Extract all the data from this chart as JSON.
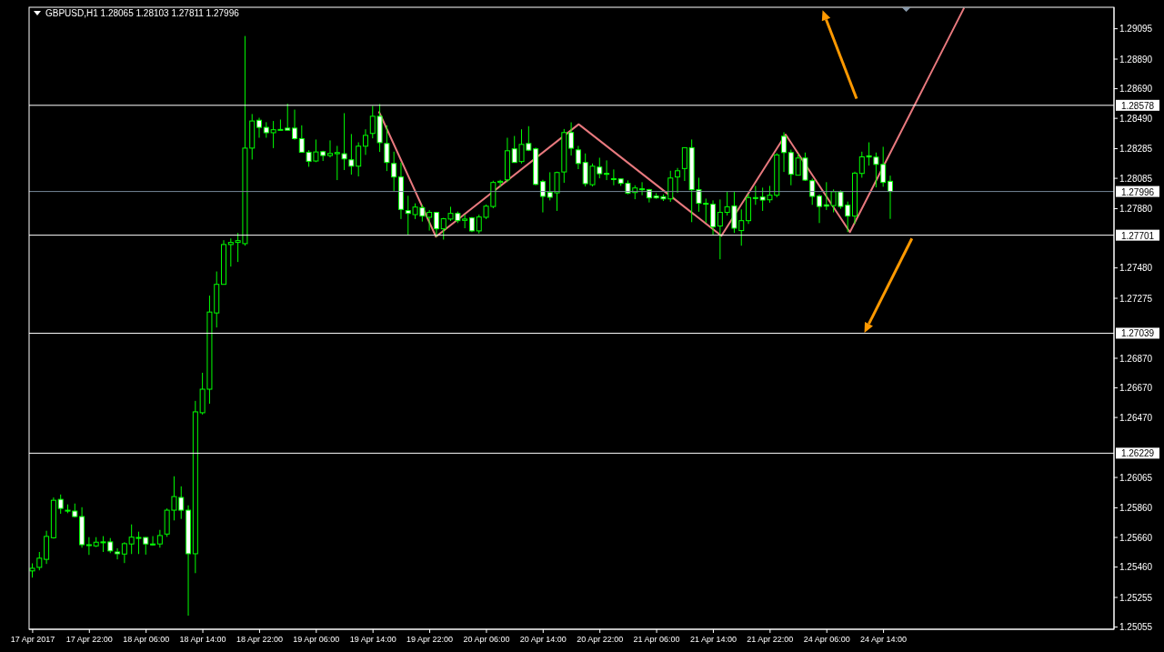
{
  "chart_data": {
    "type": "candlestick",
    "title": "GBPUSD,H1  1.28065 1.28103 1.27811 1.27996",
    "color": "#00ff00",
    "categories": [
      "17 Apr 2017",
      null,
      null,
      null,
      null,
      null,
      null,
      null,
      "17 Apr 22:00",
      null,
      null,
      null,
      null,
      null,
      null,
      null,
      "18 Apr 06:00",
      null,
      null,
      null,
      null,
      null,
      null,
      null,
      "18 Apr 14:00",
      null,
      null,
      null,
      null,
      null,
      null,
      null,
      "18 Apr 22:00",
      null,
      null,
      null,
      null,
      null,
      null,
      null,
      "19 Apr 06:00",
      null,
      null,
      null,
      null,
      null,
      null,
      null,
      "19 Apr 14:00",
      null,
      null,
      null,
      null,
      null,
      null,
      null,
      "19 Apr 22:00",
      null,
      null,
      null,
      null,
      null,
      null,
      null,
      "20 Apr 06:00",
      null,
      null,
      null,
      null,
      null,
      null,
      null,
      "20 Apr 14:00",
      null,
      null,
      null,
      null,
      null,
      null,
      null,
      "20 Apr 22:00",
      null,
      null,
      null,
      null,
      null,
      null,
      null,
      "21 Apr 06:00",
      null,
      null,
      null,
      null,
      null,
      null,
      null,
      "21 Apr 14:00",
      null,
      null,
      null,
      null,
      null,
      null,
      null,
      "21 Apr 22:00",
      null,
      null,
      null,
      null,
      null,
      null,
      null,
      "24 Apr 06:00",
      null,
      null,
      null,
      null,
      null,
      null,
      null,
      "24 Apr 14:00",
      null,
      null,
      null,
      null,
      null,
      null,
      null,
      null,
      null,
      null,
      null,
      null,
      null,
      null,
      null,
      null,
      null,
      null,
      null,
      null,
      null,
      null,
      null,
      null,
      null,
      null,
      null,
      null,
      null,
      null,
      null,
      null
    ],
    "ohlc": [
      [
        1.25434,
        1.25485,
        1.25389,
        1.25452
      ],
      [
        1.25458,
        1.25562,
        1.25438,
        1.2552
      ],
      [
        1.25512,
        1.25705,
        1.25481,
        1.25667
      ],
      [
        1.25658,
        1.2593,
        1.25652,
        1.25911
      ],
      [
        1.25917,
        1.2595,
        1.2582,
        1.25856
      ],
      [
        1.25844,
        1.25883,
        1.25824,
        1.25842
      ],
      [
        1.25838,
        1.25889,
        1.25795,
        1.25801
      ],
      [
        1.25801,
        1.25864,
        1.25591,
        1.25611
      ],
      [
        1.25611,
        1.25662,
        1.25542,
        1.25605
      ],
      [
        1.25603,
        1.25662,
        1.25595,
        1.25628
      ],
      [
        1.2563,
        1.25669,
        1.25562,
        1.25628
      ],
      [
        1.2563,
        1.25656,
        1.25554,
        1.25569
      ],
      [
        1.25562,
        1.25587,
        1.25512,
        1.2555
      ],
      [
        1.25548,
        1.25628,
        1.25487,
        1.25618
      ],
      [
        1.25616,
        1.25748,
        1.25548,
        1.25662
      ],
      [
        1.2566,
        1.25699,
        1.25548,
        1.25654
      ],
      [
        1.2566,
        1.25662,
        1.25544,
        1.25616
      ],
      [
        1.25616,
        1.25669,
        1.25607,
        1.25614
      ],
      [
        1.25616,
        1.25711,
        1.25591,
        1.25673
      ],
      [
        1.25683,
        1.25856,
        1.25664,
        1.25844
      ],
      [
        1.25844,
        1.26073,
        1.25775,
        1.25936
      ],
      [
        1.2593,
        1.26005,
        1.25785,
        1.25844
      ],
      [
        1.25844,
        1.25877,
        1.25132,
        1.2555
      ],
      [
        1.2555,
        1.26582,
        1.25419,
        1.26508
      ],
      [
        1.26502,
        1.26772,
        1.2649,
        1.26661
      ],
      [
        1.26661,
        1.27293,
        1.26563,
        1.27182
      ],
      [
        1.27176,
        1.27456,
        1.27078,
        1.27369
      ],
      [
        1.27369,
        1.27667,
        1.27369,
        1.27638
      ],
      [
        1.27638,
        1.27679,
        1.27489,
        1.27652
      ],
      [
        1.27652,
        1.27716,
        1.2752,
        1.27664
      ],
      [
        1.27644,
        1.29046,
        1.2763,
        1.28289
      ],
      [
        1.28289,
        1.28519,
        1.28212,
        1.28472
      ],
      [
        1.28477,
        1.28494,
        1.28359,
        1.28429
      ],
      [
        1.28429,
        1.28464,
        1.28359,
        1.28393
      ],
      [
        1.28393,
        1.28472,
        1.28289,
        1.28413
      ],
      [
        1.28413,
        1.28482,
        1.2841,
        1.28415
      ],
      [
        1.28424,
        1.28589,
        1.2841,
        1.2841
      ],
      [
        1.28424,
        1.28549,
        1.28345,
        1.28353
      ],
      [
        1.28353,
        1.28443,
        1.28261,
        1.28261
      ],
      [
        1.28261,
        1.28275,
        1.28163,
        1.282
      ],
      [
        1.28202,
        1.28347,
        1.28194,
        1.28263
      ],
      [
        1.28265,
        1.28271,
        1.28202,
        1.28239
      ],
      [
        1.28239,
        1.28341,
        1.28226,
        1.28253
      ],
      [
        1.28251,
        1.28304,
        1.28073,
        1.28259
      ],
      [
        1.28251,
        1.28525,
        1.28141,
        1.28216
      ],
      [
        1.2821,
        1.28384,
        1.2811,
        1.28167
      ],
      [
        1.28167,
        1.28328,
        1.28098,
        1.28302
      ],
      [
        1.28302,
        1.28416,
        1.28243,
        1.28375
      ],
      [
        1.28388,
        1.28574,
        1.28355,
        1.28504
      ],
      [
        1.28504,
        1.28586,
        1.28263,
        1.28326
      ],
      [
        1.2832,
        1.28443,
        1.28134,
        1.28192
      ],
      [
        1.28185,
        1.28265,
        1.27998,
        1.28094
      ],
      [
        1.28094,
        1.28192,
        1.2781,
        1.27875
      ],
      [
        1.27867,
        1.27967,
        1.27705,
        1.27848
      ],
      [
        1.2784,
        1.27916,
        1.2781,
        1.27891
      ],
      [
        1.27887,
        1.27906,
        1.27793,
        1.2783
      ],
      [
        1.27822,
        1.27871,
        1.27732,
        1.27855
      ],
      [
        1.27855,
        1.27855,
        1.27691,
        1.27744
      ],
      [
        1.27744,
        1.27818,
        1.27671,
        1.27812
      ],
      [
        1.2781,
        1.27893,
        1.27797,
        1.27848
      ],
      [
        1.27848,
        1.27861,
        1.27783,
        1.27799
      ],
      [
        1.27801,
        1.2784,
        1.27748,
        1.2781
      ],
      [
        1.27818,
        1.27824,
        1.27722,
        1.2773
      ],
      [
        1.2773,
        1.2784,
        1.27712,
        1.27824
      ],
      [
        1.27822,
        1.27908,
        1.2781,
        1.27897
      ],
      [
        1.27895,
        1.28069,
        1.27883,
        1.28057
      ],
      [
        1.28057,
        1.28075,
        1.28028,
        1.28065
      ],
      [
        1.28075,
        1.28359,
        1.28059,
        1.28271
      ],
      [
        1.28284,
        1.28371,
        1.28192,
        1.28192
      ],
      [
        1.28198,
        1.28416,
        1.28185,
        1.28314
      ],
      [
        1.2832,
        1.28437,
        1.28269,
        1.28275
      ],
      [
        1.28284,
        1.28292,
        1.28038,
        1.28044
      ],
      [
        1.28063,
        1.28075,
        1.27855,
        1.27963
      ],
      [
        1.27991,
        1.28126,
        1.27936,
        1.27957
      ],
      [
        1.27987,
        1.2813,
        1.27865,
        1.28124
      ],
      [
        1.28128,
        1.28418,
        1.28055,
        1.28394
      ],
      [
        1.28394,
        1.28463,
        1.28239,
        1.28288
      ],
      [
        1.28277,
        1.28304,
        1.28147,
        1.28185
      ],
      [
        1.28192,
        1.28253,
        1.2803,
        1.28049
      ],
      [
        1.28042,
        1.28185,
        1.2803,
        1.28167
      ],
      [
        1.28161,
        1.28224,
        1.28085,
        1.28116
      ],
      [
        1.28118,
        1.28206,
        1.28073,
        1.28114
      ],
      [
        1.28083,
        1.28145,
        1.28038,
        1.28079
      ],
      [
        1.28081,
        1.28081,
        1.28034,
        1.28051
      ],
      [
        1.28051,
        1.28071,
        1.27977,
        1.27985
      ],
      [
        1.27989,
        1.28038,
        1.27944,
        1.2802
      ],
      [
        1.28014,
        1.28059,
        1.27971,
        1.28008
      ],
      [
        1.28008,
        1.28014,
        1.27922,
        1.27953
      ],
      [
        1.27965,
        1.27985,
        1.27946,
        1.27953
      ],
      [
        1.27961,
        1.27977,
        1.27932,
        1.27946
      ],
      [
        1.27946,
        1.28136,
        1.27926,
        1.28087
      ],
      [
        1.28094,
        1.28155,
        1.27987,
        1.28136
      ],
      [
        1.28151,
        1.28292,
        1.28067,
        1.28292
      ],
      [
        1.28292,
        1.28347,
        1.27789,
        1.28008
      ],
      [
        1.28008,
        1.28089,
        1.27859,
        1.27916
      ],
      [
        1.27916,
        1.27948,
        1.27785,
        1.2791
      ],
      [
        1.2791,
        1.27936,
        1.27703,
        1.27757
      ],
      [
        1.27763,
        1.27942,
        1.27538,
        1.27855
      ],
      [
        1.27855,
        1.27993,
        1.27834,
        1.27893
      ],
      [
        1.27899,
        1.27993,
        1.27716,
        1.27748
      ],
      [
        1.27732,
        1.27875,
        1.2763,
        1.27799
      ],
      [
        1.27799,
        1.27979,
        1.27777,
        1.27955
      ],
      [
        1.27955,
        1.28034,
        1.27906,
        1.27951
      ],
      [
        1.27959,
        1.28022,
        1.27865,
        1.27938
      ],
      [
        1.2794,
        1.28034,
        1.2792,
        1.27971
      ],
      [
        1.27971,
        1.28255,
        1.27957,
        1.28243
      ],
      [
        1.28369,
        1.28396,
        1.28128,
        1.28259
      ],
      [
        1.28259,
        1.28279,
        1.28038,
        1.28112
      ],
      [
        1.28106,
        1.28251,
        1.28106,
        1.28222
      ],
      [
        1.28222,
        1.28259,
        1.28067,
        1.28073
      ],
      [
        1.28069,
        1.28083,
        1.27906,
        1.27963
      ],
      [
        1.27965,
        1.27977,
        1.27783,
        1.27895
      ],
      [
        1.27906,
        1.28059,
        1.27871,
        1.27897
      ],
      [
        1.27901,
        1.2801,
        1.27855,
        1.27995
      ],
      [
        1.27993,
        1.28004,
        1.27879,
        1.27895
      ],
      [
        1.27904,
        1.27928,
        1.27722,
        1.2783
      ],
      [
        1.2783,
        1.2813,
        1.27777,
        1.2812
      ],
      [
        1.28118,
        1.28265,
        1.28089,
        1.2823
      ],
      [
        1.28237,
        1.28328,
        1.28171,
        1.28229
      ],
      [
        1.28228,
        1.28259,
        1.28024,
        1.28179
      ],
      [
        1.28179,
        1.28298,
        1.28028,
        1.28057
      ],
      [
        1.28065,
        1.28103,
        1.27811,
        1.27996
      ],
      null,
      null,
      null,
      null,
      null,
      null,
      null,
      null,
      null,
      null,
      null,
      null,
      null,
      null,
      null,
      null,
      null,
      null,
      null,
      null,
      null,
      null,
      null,
      null,
      null,
      null,
      null,
      null,
      null,
      null,
      null
    ],
    "series": [
      {
        "type": "line",
        "color": "#e8797e",
        "values": [
          null,
          null,
          null,
          null,
          null,
          null,
          null,
          null,
          null,
          null,
          null,
          null,
          null,
          null,
          null,
          null,
          null,
          null,
          null,
          null,
          null,
          null,
          null,
          null,
          null,
          null,
          null,
          null,
          null,
          null,
          null,
          null,
          null,
          null,
          null,
          null,
          null,
          null,
          null,
          null,
          null,
          null,
          null,
          null,
          null,
          null,
          null,
          null,
          null,
          1.28537,
          null,
          null,
          null,
          null,
          null,
          null,
          null,
          1.27691,
          null,
          null,
          null,
          null,
          null,
          null,
          null,
          null,
          null,
          null,
          null,
          null,
          null,
          null,
          null,
          null,
          null,
          null,
          null,
          1.2845,
          null,
          null,
          null,
          null,
          null,
          null,
          null,
          null,
          null,
          null,
          null,
          null,
          null,
          null,
          null,
          null,
          null,
          null,
          null,
          1.27697,
          null,
          null,
          null,
          null,
          null,
          null,
          null,
          null,
          1.2838,
          null,
          null,
          null,
          null,
          null,
          null,
          null,
          null,
          1.27722,
          null,
          null,
          null,
          null,
          null,
          null,
          null,
          null,
          null,
          null,
          null,
          null,
          null,
          null,
          null,
          1.29236,
          null,
          null,
          null,
          null,
          null,
          null,
          null,
          null,
          null,
          null,
          null,
          null,
          null,
          null,
          null,
          null,
          null,
          null,
          null,
          null,
          null
        ]
      }
    ],
    "ylim": [
      1.2504,
      1.2924
    ],
    "yticks": [
      1.29095,
      {
        "value": 1.2889,
        "label": "1.28890"
      },
      {
        "value": 1.2869,
        "label": "1.28690"
      },
      {
        "value": 1.2849,
        "label": "1.28490"
      },
      1.28285,
      1.28085,
      {
        "value": 1.2788,
        "label": "1.27880"
      },
      {
        "value": 1.2748,
        "label": "1.27480"
      },
      1.27275,
      {
        "value": 1.2687,
        "label": "1.26870"
      },
      {
        "value": 1.2667,
        "label": "1.26670"
      },
      {
        "value": 1.2647,
        "label": "1.26470"
      },
      1.26065,
      {
        "value": 1.2586,
        "label": "1.25860"
      },
      {
        "value": 1.2566,
        "label": "1.25660"
      },
      {
        "value": 1.2546,
        "label": "1.25460"
      },
      1.25255,
      1.25055
    ],
    "ref_lines": [
      {
        "axis": "y",
        "value": 1.28578,
        "label": "1.28578",
        "color": "#ffffff"
      },
      {
        "axis": "y",
        "value": 1.27996,
        "label": "1.27996",
        "color": "#778899"
      },
      {
        "axis": "y",
        "value": 1.27701,
        "label": "1.27701",
        "color": "#ffffff"
      },
      {
        "axis": "y",
        "value": 1.27039,
        "label": "1.27039",
        "color": "#ffffff"
      },
      {
        "axis": "y",
        "value": 1.26229,
        "label": "1.26229",
        "color": "#ffffff"
      }
    ]
  }
}
